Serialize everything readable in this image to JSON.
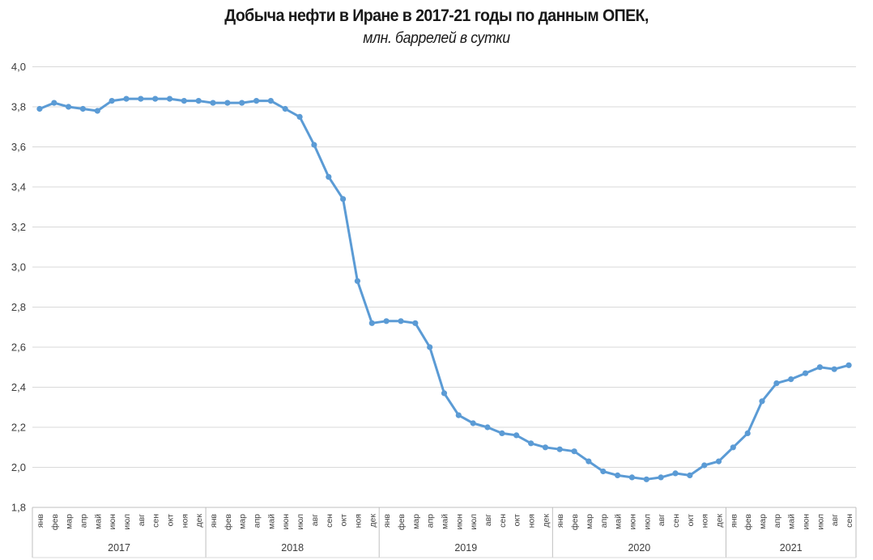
{
  "chart_data": {
    "type": "line",
    "title": "Добыча нефти в Иране в 2017-21 годы по данным ОПЕК,",
    "subtitle": "млн. баррелей в сутки",
    "xlabel": "",
    "ylabel": "",
    "ylim": [
      1.8,
      4.0
    ],
    "ytick_step": 0.2,
    "y_ticks": [
      "4,0",
      "3,8",
      "3,6",
      "3,4",
      "3,2",
      "3,0",
      "2,8",
      "2,6",
      "2,4",
      "2,2",
      "2,0",
      "1,8"
    ],
    "decimal_separator": ",",
    "grid": true,
    "legend": "none",
    "marker": "circle",
    "groups": [
      {
        "year": "2017",
        "months": [
          "янв",
          "фев",
          "мар",
          "апр",
          "май",
          "июн",
          "июл",
          "авг",
          "сен",
          "окт",
          "ноя",
          "дек"
        ],
        "values": [
          3.79,
          3.82,
          3.8,
          3.79,
          3.78,
          3.83,
          3.84,
          3.84,
          3.84,
          3.84,
          3.83,
          3.83
        ]
      },
      {
        "year": "2018",
        "months": [
          "янв",
          "фев",
          "мар",
          "апр",
          "май",
          "июн",
          "июл",
          "авг",
          "сен",
          "окт",
          "ноя",
          "дек"
        ],
        "values": [
          3.82,
          3.82,
          3.82,
          3.83,
          3.83,
          3.79,
          3.75,
          3.61,
          3.45,
          3.34,
          2.93,
          2.72
        ]
      },
      {
        "year": "2019",
        "months": [
          "янв",
          "фев",
          "мар",
          "апр",
          "май",
          "июн",
          "июл",
          "авг",
          "сен",
          "окт",
          "ноя",
          "дек"
        ],
        "values": [
          2.73,
          2.73,
          2.72,
          2.6,
          2.37,
          2.26,
          2.22,
          2.2,
          2.17,
          2.16,
          2.12,
          2.1
        ]
      },
      {
        "year": "2020",
        "months": [
          "янв",
          "фев",
          "мар",
          "апр",
          "май",
          "июн",
          "июл",
          "авг",
          "сен",
          "окт",
          "ноя",
          "дек"
        ],
        "values": [
          2.09,
          2.08,
          2.03,
          1.98,
          1.96,
          1.95,
          1.94,
          1.95,
          1.97,
          1.96,
          2.01,
          2.03
        ]
      },
      {
        "year": "2021",
        "months": [
          "янв",
          "фев",
          "мар",
          "апр",
          "май",
          "июн",
          "июл",
          "авг",
          "сен"
        ],
        "values": [
          2.1,
          2.17,
          2.33,
          2.42,
          2.44,
          2.47,
          2.5,
          2.49,
          2.51
        ]
      }
    ],
    "colors": {
      "line": "#5B9BD5",
      "marker": "#5B9BD5",
      "gridline": "#D9D9D9",
      "axis": "#BFBFBF",
      "tick_label": "#3D3D3D",
      "title": "#1A1A1A"
    }
  }
}
